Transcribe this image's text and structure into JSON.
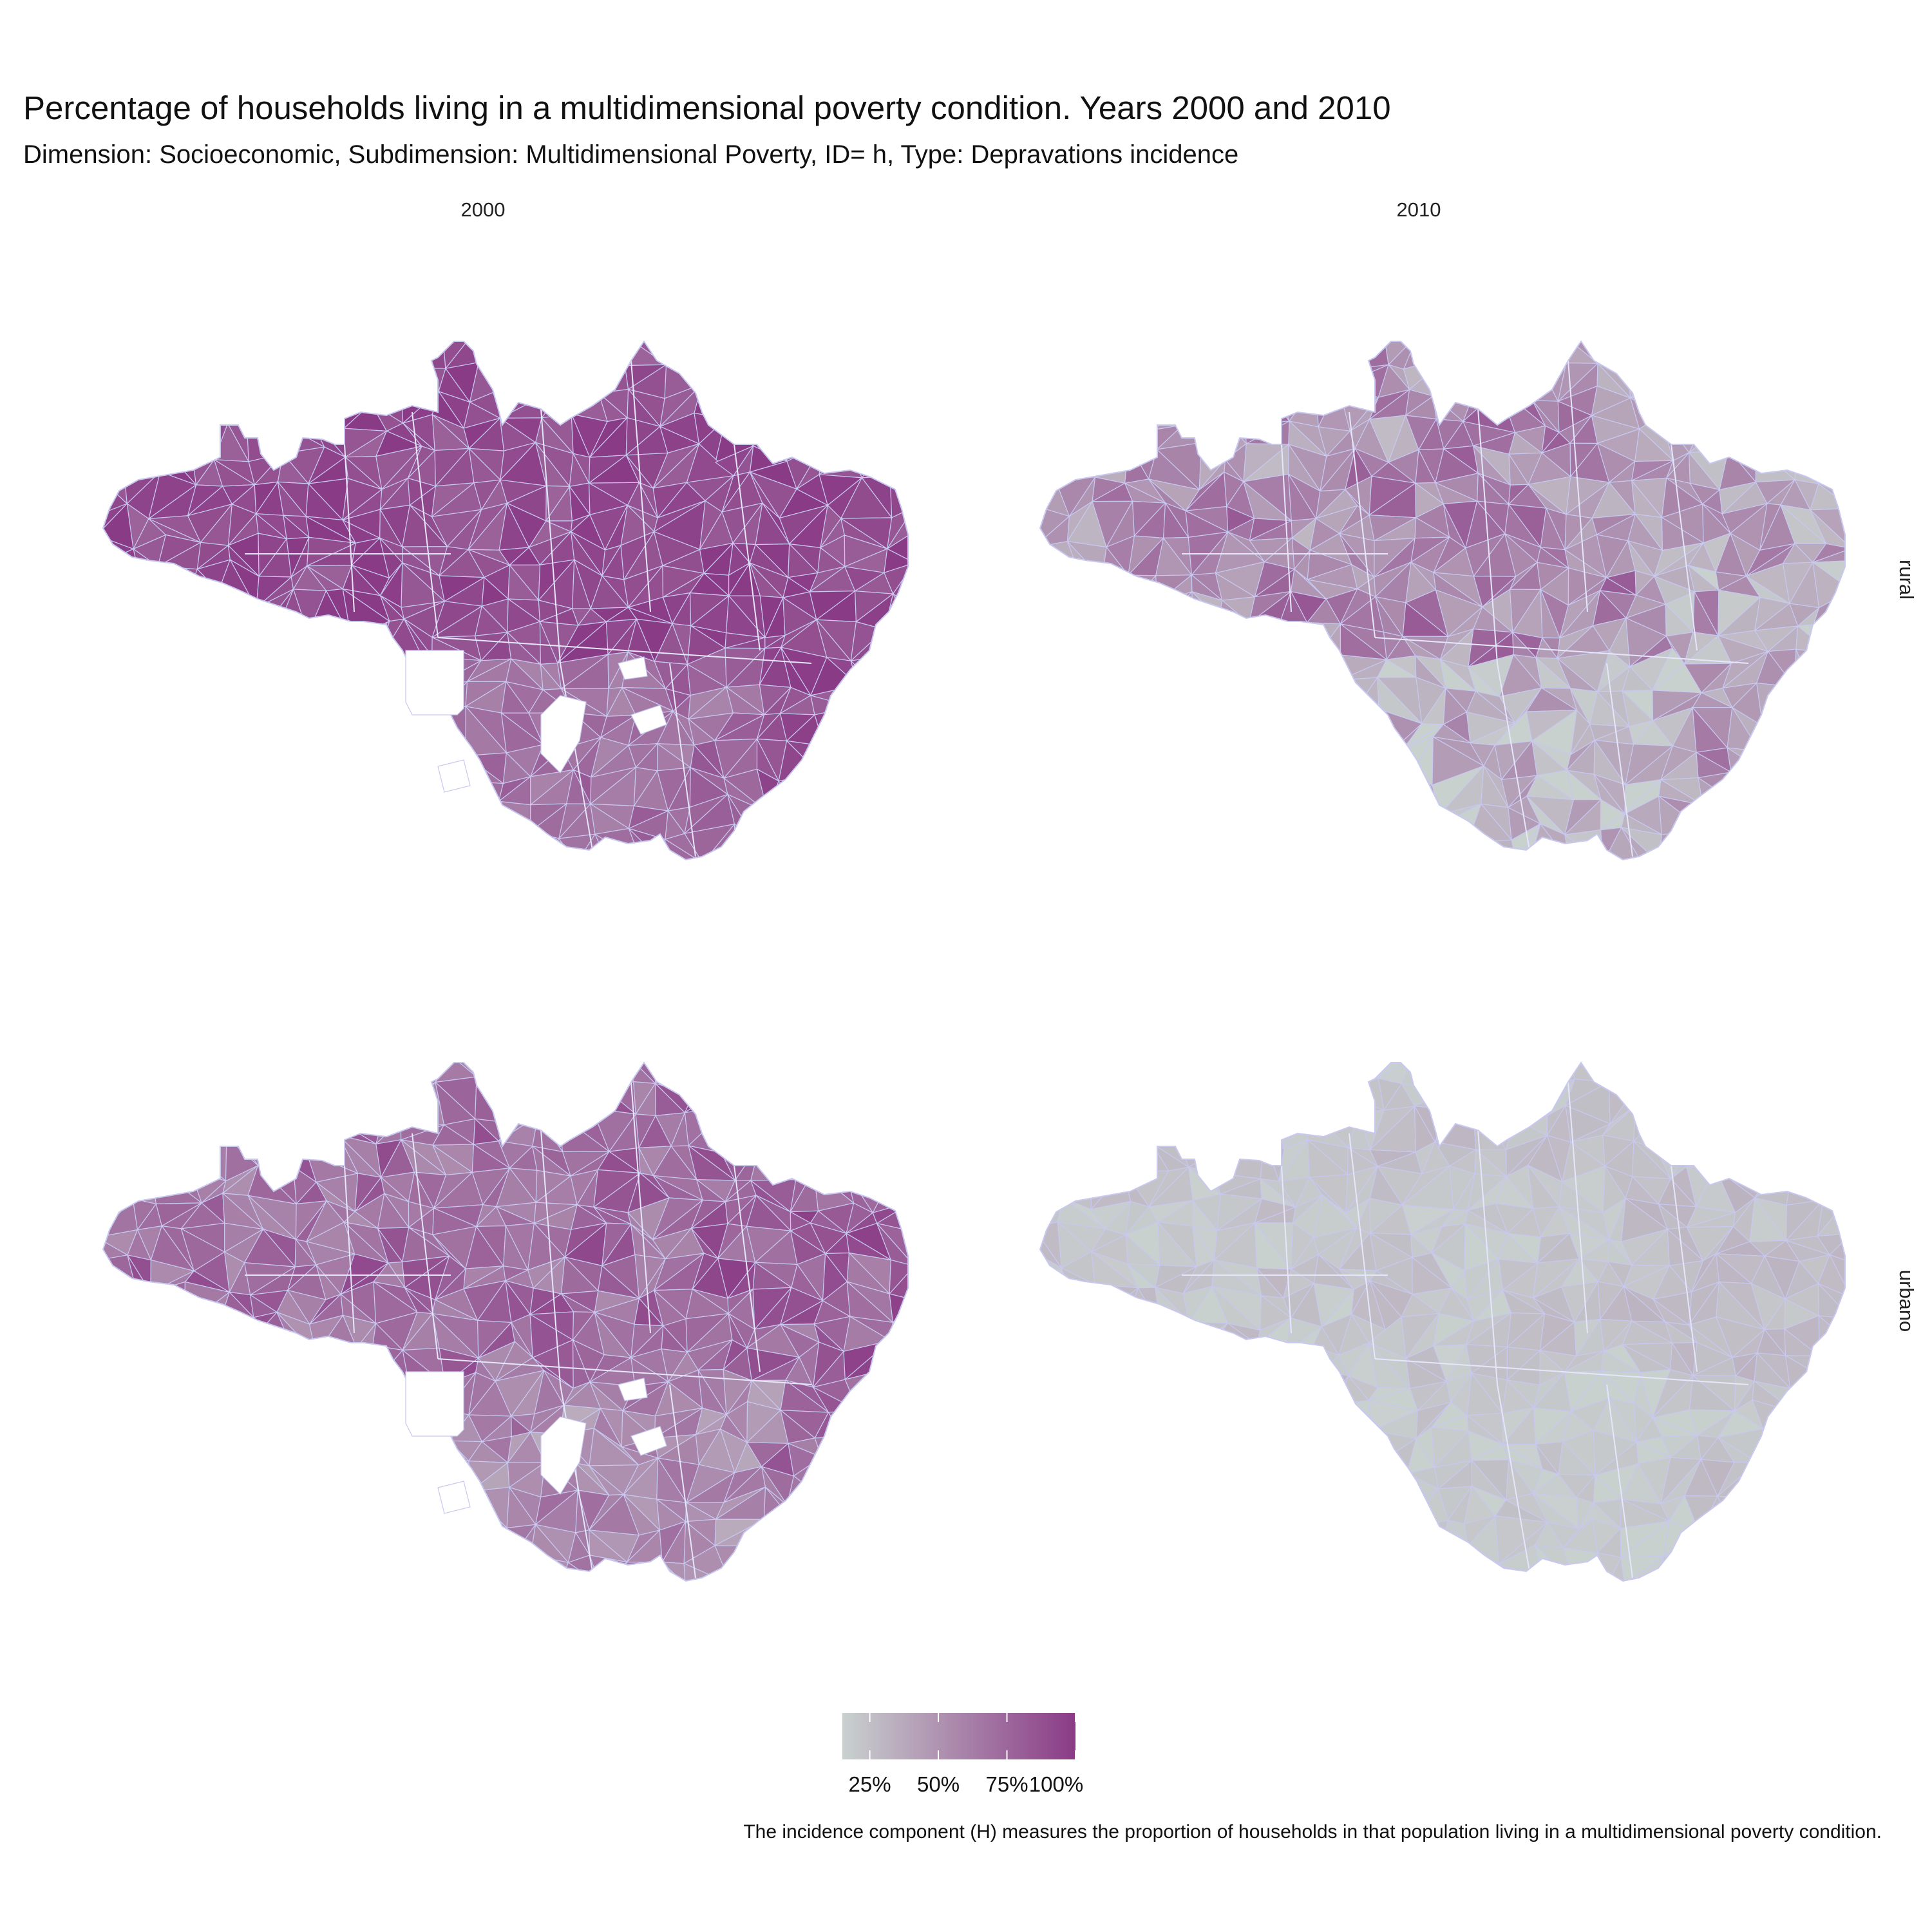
{
  "title": "Percentage of households living in a multidimensional poverty condition. Years 2000 and 2010",
  "subtitle": "Dimension: Socioeconomic, Subdimension: Multidimensional Poverty, ID= h, Type: Depravations incidence",
  "columns": [
    "2000",
    "2010"
  ],
  "rows": [
    "rural",
    "urbano"
  ],
  "legend": {
    "tick_labels": [
      "25%",
      "50%",
      "75%",
      "100%"
    ],
    "tick_values": [
      0.25,
      0.5,
      0.75,
      1.0
    ],
    "range": [
      0.15,
      1.0
    ],
    "color_low": "#c9d1cf",
    "color_high": "#8a3b86"
  },
  "caption": "The incidence component (H) measures the proportion of households in that population living in a multidimensional poverty condition.",
  "colors": {
    "boundary": "#c8c8f0",
    "background": "#ffffff"
  },
  "chart_data": {
    "type": "heatmap",
    "kind": "faceted choropleth map",
    "facets": [
      {
        "column": "2000",
        "row": "rural",
        "typical_share": 0.9,
        "spread": 0.1,
        "share_northeast": 0.92,
        "share_south": 0.7
      },
      {
        "column": "2010",
        "row": "rural",
        "typical_share": 0.55,
        "spread": 0.2,
        "share_northeast": 0.4,
        "share_south": 0.3
      },
      {
        "column": "2000",
        "row": "urbano",
        "typical_share": 0.72,
        "spread": 0.15,
        "share_northeast": 0.8,
        "share_south": 0.55
      },
      {
        "column": "2010",
        "row": "urbano",
        "typical_share": 0.22,
        "spread": 0.06,
        "share_northeast": 0.25,
        "share_south": 0.18
      }
    ]
  }
}
